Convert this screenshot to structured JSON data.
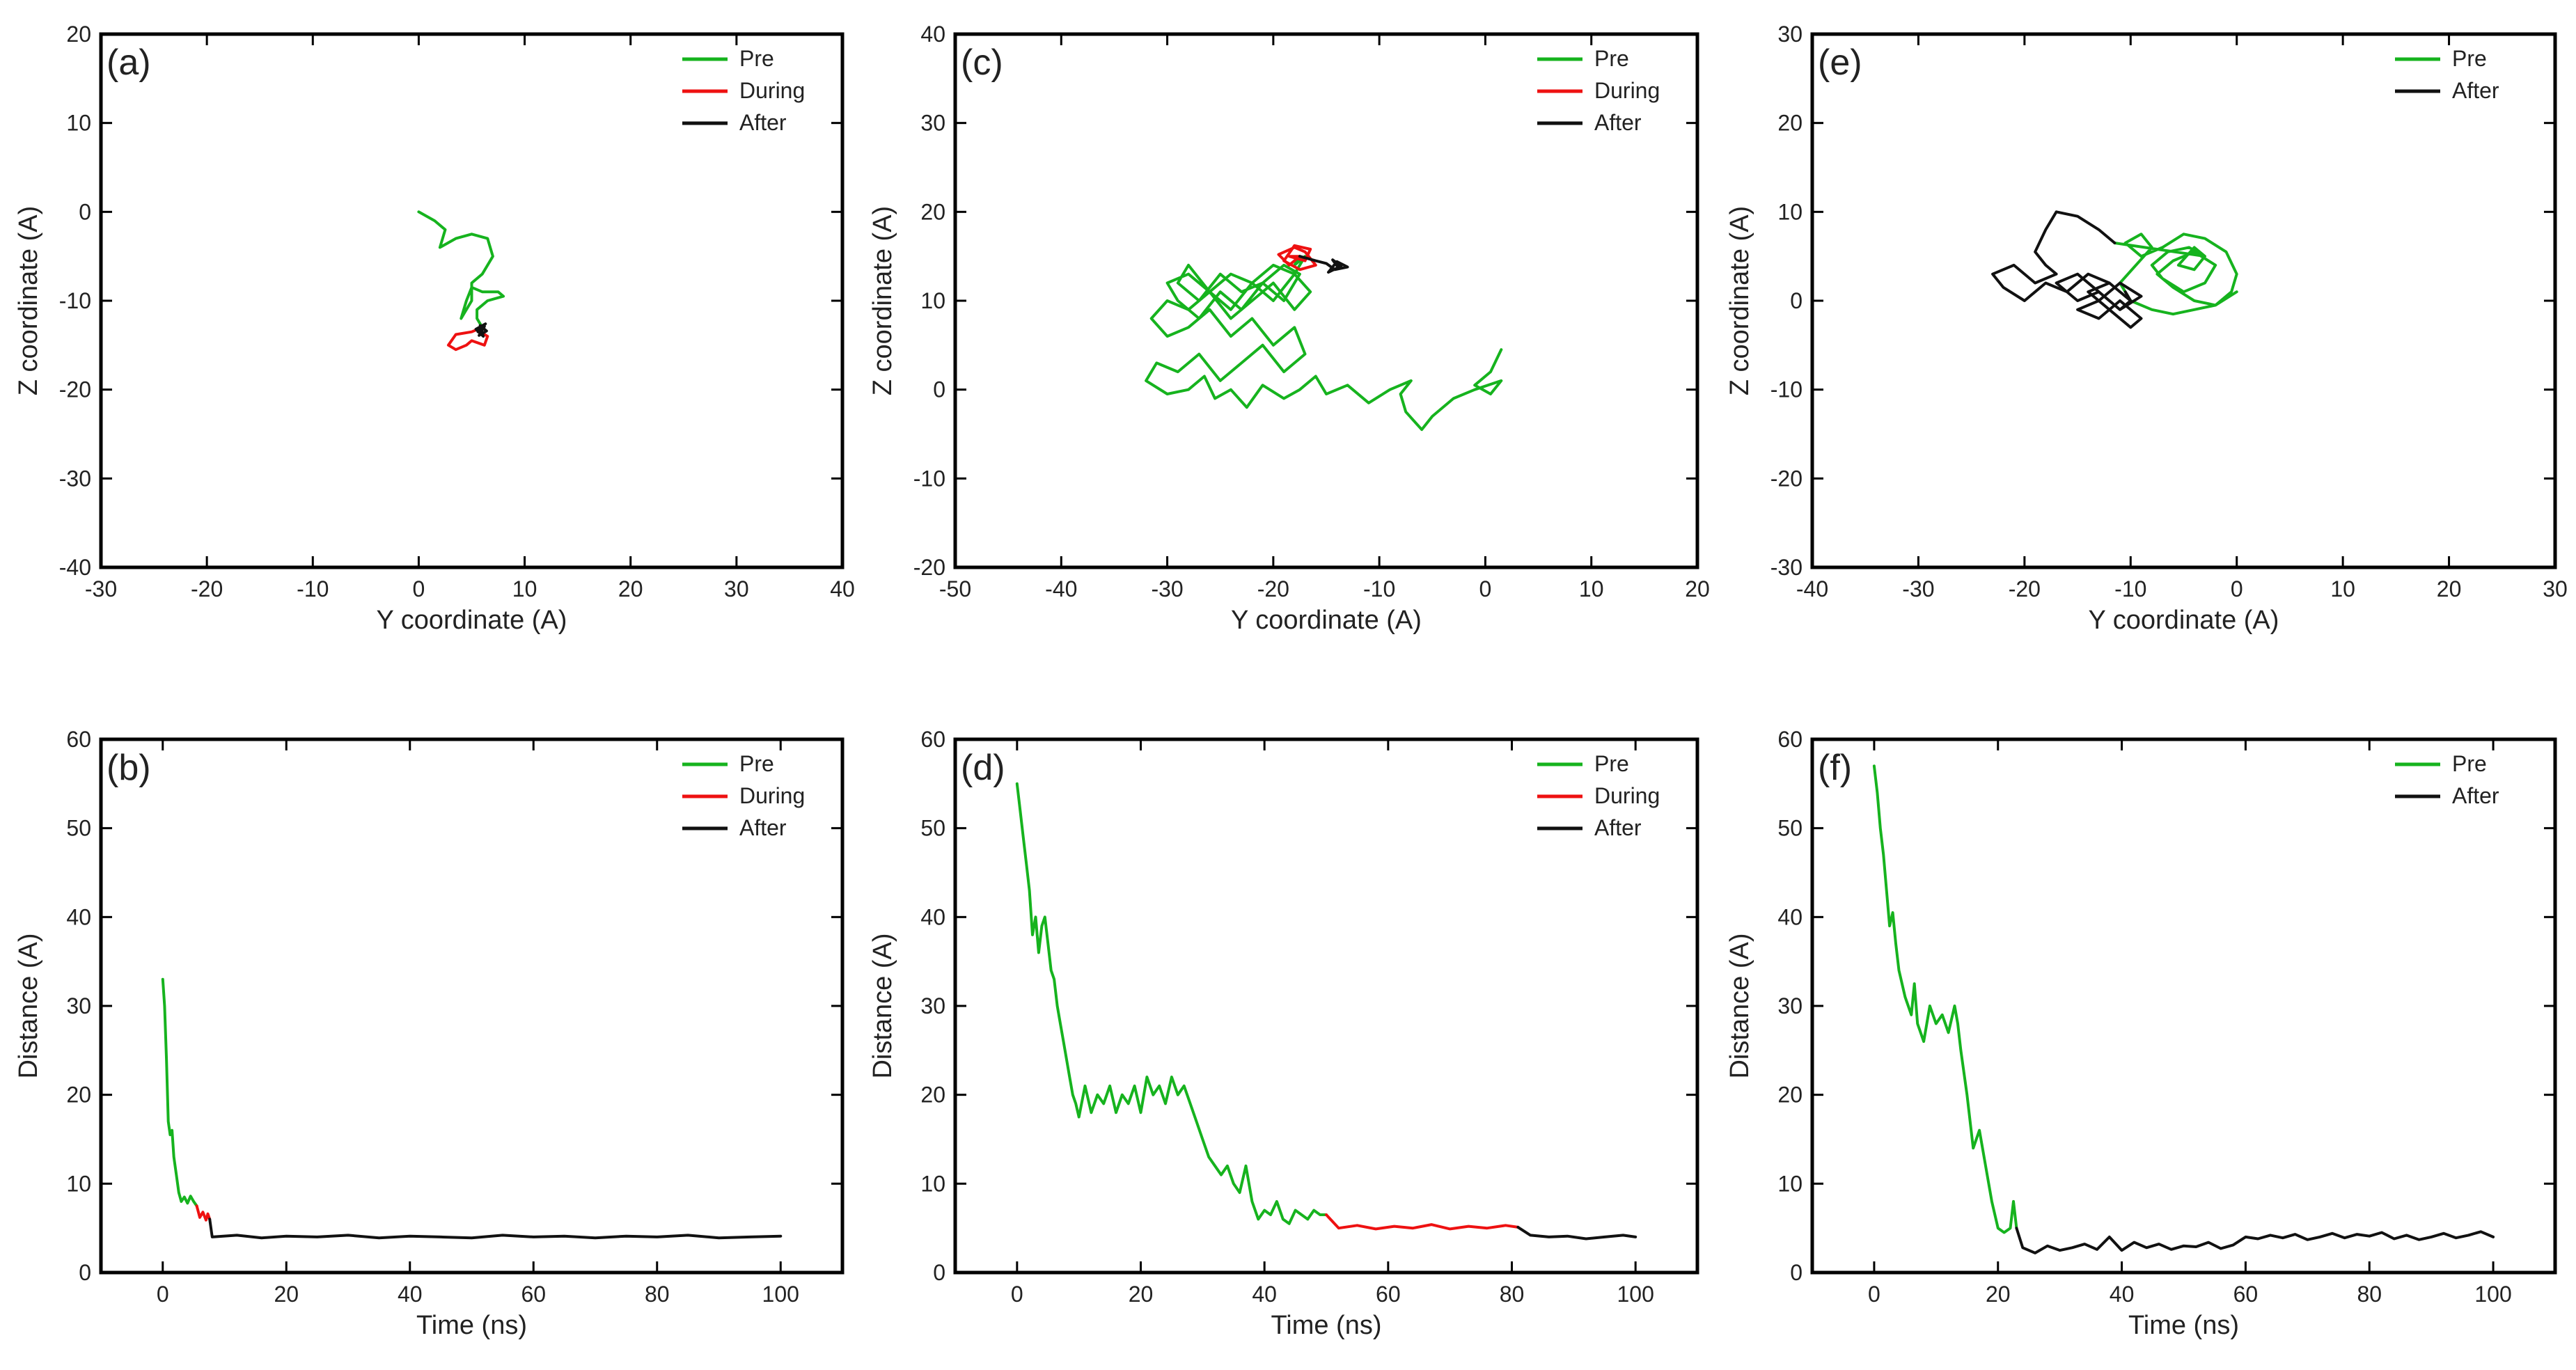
{
  "figure": {
    "colors": {
      "pre": "#16b31e",
      "during": "#ee1111",
      "after": "#111111",
      "axis": "#000000",
      "text": "#222222"
    }
  },
  "chart_data": [
    {
      "id": "a",
      "panel_label": "(a)",
      "type": "line",
      "xlabel": "Y coordinate (A)",
      "ylabel": "Z coordinate (A)",
      "xlim": [
        -30,
        40
      ],
      "ylim": [
        -40,
        20
      ],
      "xticks": [
        -30,
        -20,
        -10,
        0,
        10,
        20,
        30,
        40
      ],
      "yticks": [
        -40,
        -30,
        -20,
        -10,
        0,
        10,
        20
      ],
      "legend_position": "top-right",
      "series": [
        {
          "name": "Pre",
          "color": "#16b31e",
          "x": [
            0,
            1.5,
            2.5,
            2,
            3.5,
            5,
            6.5,
            7,
            6,
            5,
            5,
            4,
            4.5,
            5,
            6,
            7.5,
            8,
            6.5,
            5.5,
            5.5,
            6
          ],
          "y": [
            0,
            -1,
            -2,
            -4,
            -3,
            -2.5,
            -3,
            -5,
            -7,
            -8,
            -10,
            -12,
            -10,
            -8.5,
            -9,
            -9,
            -9.5,
            -10,
            -11,
            -12,
            -13
          ]
        },
        {
          "name": "During",
          "color": "#ee1111",
          "x": [
            6,
            5,
            3.5,
            2.8,
            3.5,
            4.5,
            5,
            6.2,
            6.5,
            5.8,
            6
          ],
          "y": [
            -13,
            -13.5,
            -13.8,
            -15,
            -15.5,
            -15,
            -14.5,
            -15,
            -14,
            -13.5,
            -13
          ]
        },
        {
          "name": "After",
          "color": "#111111",
          "x": [
            6,
            5.6,
            6.3,
            5.4,
            6.1,
            5.8,
            6.4,
            5.7,
            6.2,
            6
          ],
          "y": [
            -13,
            -13.5,
            -12.6,
            -13.2,
            -14,
            -12.8,
            -13.4,
            -13.9,
            -12.9,
            -13.3
          ]
        }
      ]
    },
    {
      "id": "c",
      "panel_label": "(c)",
      "type": "line",
      "xlabel": "Y coordinate (A)",
      "ylabel": "Z coordinate (A)",
      "xlim": [
        -50,
        20
      ],
      "ylim": [
        -20,
        40
      ],
      "xticks": [
        -50,
        -40,
        -30,
        -20,
        -10,
        0,
        10,
        20
      ],
      "yticks": [
        -20,
        -10,
        0,
        10,
        20,
        30,
        40
      ],
      "legend_position": "top-right",
      "series": [
        {
          "name": "Pre",
          "color": "#16b31e",
          "x": [
            1.5,
            0.5,
            -1,
            0.5,
            1.5,
            -1,
            -3,
            -5,
            -6,
            -7.5,
            -8,
            -7,
            -9,
            -11,
            -13,
            -15,
            -16,
            -17.5,
            -19,
            -21,
            -22.5,
            -24,
            -25.5,
            -26.5,
            -28,
            -30,
            -32,
            -31,
            -29,
            -27,
            -25,
            -23,
            -21,
            -19,
            -17,
            -18,
            -20,
            -22,
            -24,
            -26,
            -28,
            -30,
            -31.5,
            -30,
            -28,
            -26,
            -24,
            -22,
            -20,
            -18,
            -16.5,
            -18,
            -20,
            -22,
            -24,
            -26,
            -28,
            -30,
            -29,
            -27,
            -25,
            -23,
            -21,
            -19,
            -17.5,
            -19,
            -21,
            -23,
            -25,
            -27,
            -29,
            -28,
            -26,
            -24,
            -22,
            -20,
            -18,
            -17,
            -18,
            -17.5
          ],
          "y": [
            4.5,
            2,
            0.5,
            -0.5,
            1,
            0,
            -1,
            -3,
            -4.5,
            -2.5,
            -0.5,
            1,
            0,
            -1.5,
            0.5,
            -0.5,
            1.5,
            0,
            -1,
            0.5,
            -2,
            0,
            -1,
            1.5,
            0,
            -0.5,
            1,
            3,
            2,
            4,
            1,
            3,
            5,
            2,
            4,
            7,
            5,
            8,
            6,
            9,
            7,
            6,
            8,
            10,
            9,
            11,
            8,
            10,
            12,
            9,
            11,
            13,
            10,
            12,
            9,
            11,
            13,
            12,
            10,
            8,
            11,
            9,
            12,
            10,
            13,
            14,
            12,
            11,
            13,
            10,
            12,
            14,
            11,
            13,
            12,
            14,
            13,
            15,
            14,
            15
          ]
        },
        {
          "name": "During",
          "color": "#ee1111",
          "x": [
            -17.5,
            -18.5,
            -19.5,
            -18,
            -17,
            -16,
            -17.5,
            -19,
            -18,
            -16.5,
            -17,
            -18.5,
            -17.5
          ],
          "y": [
            15,
            14,
            15.2,
            16,
            15.5,
            14,
            13.5,
            14.5,
            16.2,
            15.8,
            14.5,
            15,
            15
          ]
        },
        {
          "name": "After",
          "color": "#111111",
          "x": [
            -17.5,
            -16,
            -15,
            -14.2,
            -13,
            -14,
            -14.8,
            -13.6,
            -14.4,
            -13.8
          ],
          "y": [
            15,
            14.5,
            14.2,
            13.5,
            13.8,
            14.4,
            13.2,
            13.9,
            14.6,
            13.6
          ]
        }
      ]
    },
    {
      "id": "e",
      "panel_label": "(e)",
      "type": "line",
      "xlabel": "Y coordinate (A)",
      "ylabel": "Z coordinate (A)",
      "xlim": [
        -40,
        30
      ],
      "ylim": [
        -30,
        30
      ],
      "xticks": [
        -40,
        -30,
        -20,
        -10,
        0,
        10,
        20,
        30
      ],
      "yticks": [
        -30,
        -20,
        -10,
        0,
        10,
        20,
        30
      ],
      "legend_position": "top-right",
      "series": [
        {
          "name": "Pre",
          "color": "#16b31e",
          "x": [
            0,
            -2,
            -4,
            -6,
            -8,
            -10,
            -11,
            -9.5,
            -8,
            -9,
            -10.5,
            -9,
            -7,
            -5,
            -3,
            -1,
            0,
            -0.5,
            -2,
            -4,
            -6,
            -7.5,
            -6,
            -4,
            -2,
            -3,
            -5,
            -7,
            -8,
            -6.5,
            -4.5,
            -3,
            -4,
            -5.5,
            -4,
            -3,
            -11.5
          ],
          "y": [
            1,
            -0.5,
            -1,
            -1.5,
            -1,
            0,
            2,
            4,
            6,
            7.5,
            6.5,
            5,
            6,
            7.5,
            7,
            5.5,
            3,
            1,
            -0.5,
            0,
            1.5,
            3,
            4.5,
            5.5,
            4,
            2,
            1,
            2.5,
            4,
            5.5,
            6,
            5,
            3.5,
            4,
            6,
            5,
            6.5
          ]
        },
        {
          "name": "After",
          "color": "#111111",
          "x": [
            -11.5,
            -13,
            -15,
            -17,
            -18,
            -19,
            -18,
            -17,
            -19,
            -21,
            -23,
            -22,
            -20,
            -18,
            -16,
            -14,
            -12,
            -10,
            -11,
            -13,
            -15,
            -17,
            -15,
            -13,
            -11,
            -9,
            -11,
            -13,
            -15,
            -13,
            -11,
            -9,
            -10,
            -12,
            -14,
            -12,
            -10,
            -10.5
          ],
          "y": [
            6.5,
            8,
            9.5,
            10,
            8,
            5.5,
            4,
            3,
            2,
            4,
            3,
            1.5,
            0,
            2,
            1,
            3,
            2,
            0,
            -1,
            1,
            0,
            2,
            3,
            1,
            -1,
            0.5,
            2,
            0,
            -1,
            -2,
            0,
            -2,
            -3,
            -1,
            1,
            2,
            0,
            1
          ]
        }
      ]
    },
    {
      "id": "b",
      "panel_label": "(b)",
      "type": "line",
      "xlabel": "Time (ns)",
      "ylabel": "Distance (A)",
      "xlim": [
        -10,
        110
      ],
      "ylim": [
        0,
        60
      ],
      "xticks": [
        0,
        20,
        40,
        60,
        80,
        100
      ],
      "yticks": [
        0,
        10,
        20,
        30,
        40,
        50,
        60
      ],
      "legend_position": "top-right",
      "series": [
        {
          "name": "Pre",
          "color": "#16b31e",
          "x": [
            0,
            0.3,
            0.6,
            0.9,
            1.2,
            1.5,
            1.8,
            2.2,
            2.6,
            3,
            3.5,
            4,
            4.5,
            5,
            5.5
          ],
          "y": [
            33,
            30,
            24,
            17,
            15.5,
            16,
            13,
            11,
            9,
            8,
            8.5,
            7.8,
            8.6,
            8,
            7.5
          ]
        },
        {
          "name": "During",
          "color": "#ee1111",
          "x": [
            5.5,
            6,
            6.5,
            7,
            7.3,
            7.6
          ],
          "y": [
            7.5,
            6.2,
            6.8,
            5.9,
            6.6,
            6
          ]
        },
        {
          "name": "After",
          "color": "#111111",
          "x": [
            7.6,
            8,
            12,
            16,
            20,
            25,
            30,
            35,
            40,
            45,
            50,
            55,
            60,
            65,
            70,
            75,
            80,
            85,
            90,
            95,
            100
          ],
          "y": [
            6,
            4,
            4.2,
            3.9,
            4.1,
            4,
            4.2,
            3.9,
            4.1,
            4,
            3.9,
            4.2,
            4,
            4.1,
            3.9,
            4.1,
            4,
            4.2,
            3.9,
            4,
            4.1
          ]
        }
      ]
    },
    {
      "id": "d",
      "panel_label": "(d)",
      "type": "line",
      "xlabel": "Time (ns)",
      "ylabel": "Distance (A)",
      "xlim": [
        -10,
        110
      ],
      "ylim": [
        0,
        60
      ],
      "xticks": [
        0,
        20,
        40,
        60,
        80,
        100
      ],
      "yticks": [
        0,
        10,
        20,
        30,
        40,
        50,
        60
      ],
      "legend_position": "top-right",
      "series": [
        {
          "name": "Pre",
          "color": "#16b31e",
          "x": [
            0,
            0.5,
            1,
            1.5,
            2,
            2.5,
            3,
            3.5,
            4,
            4.5,
            5,
            5.5,
            6,
            6.5,
            7,
            7.5,
            8,
            8.5,
            9,
            9.5,
            10,
            11,
            12,
            13,
            14,
            15,
            16,
            17,
            18,
            19,
            20,
            21,
            22,
            23,
            24,
            25,
            26,
            27,
            28,
            29,
            30,
            31,
            32,
            33,
            34,
            35,
            36,
            37,
            38,
            39,
            40,
            41,
            42,
            43,
            44,
            45,
            46,
            47,
            48,
            49,
            50
          ],
          "y": [
            55,
            52,
            49,
            46,
            43,
            38,
            40,
            36,
            39,
            40,
            37,
            34,
            33,
            30,
            28,
            26,
            24,
            22,
            20,
            19,
            17.5,
            21,
            18,
            20,
            19,
            21,
            18,
            20,
            19,
            21,
            18,
            22,
            20,
            21,
            19,
            22,
            20,
            21,
            19,
            17,
            15,
            13,
            12,
            11,
            12,
            10,
            9,
            12,
            8,
            6,
            7,
            6.5,
            8,
            6,
            5.5,
            7,
            6.5,
            6,
            7,
            6.5,
            6.5
          ]
        },
        {
          "name": "During",
          "color": "#ee1111",
          "x": [
            50,
            52,
            55,
            58,
            61,
            64,
            67,
            70,
            73,
            76,
            79,
            81
          ],
          "y": [
            6.5,
            5,
            5.3,
            4.9,
            5.2,
            5,
            5.4,
            4.9,
            5.2,
            5,
            5.3,
            5.1
          ]
        },
        {
          "name": "After",
          "color": "#111111",
          "x": [
            81,
            83,
            86,
            89,
            92,
            95,
            98,
            100
          ],
          "y": [
            5.1,
            4.2,
            4,
            4.1,
            3.8,
            4,
            4.2,
            4
          ]
        }
      ]
    },
    {
      "id": "f",
      "panel_label": "(f)",
      "type": "line",
      "xlabel": "Time (ns)",
      "ylabel": "Distance (A)",
      "xlim": [
        -10,
        110
      ],
      "ylim": [
        0,
        60
      ],
      "xticks": [
        0,
        20,
        40,
        60,
        80,
        100
      ],
      "yticks": [
        0,
        10,
        20,
        30,
        40,
        50,
        60
      ],
      "legend_position": "top-right",
      "series": [
        {
          "name": "Pre",
          "color": "#16b31e",
          "x": [
            0,
            0.5,
            1,
            1.5,
            2,
            2.5,
            3,
            3.5,
            4,
            5,
            6,
            6.5,
            7,
            8,
            9,
            10,
            11,
            12,
            13,
            13.5,
            14,
            15,
            16,
            17,
            18,
            19,
            20,
            21,
            22,
            22.5,
            23
          ],
          "y": [
            57,
            54,
            50,
            47,
            43,
            39,
            40.5,
            37,
            34,
            31,
            29,
            32.5,
            28,
            26,
            30,
            28,
            29,
            27,
            30,
            28,
            25,
            20,
            14,
            16,
            12,
            8,
            5,
            4.5,
            5,
            8,
            5
          ]
        },
        {
          "name": "After",
          "color": "#111111",
          "x": [
            23,
            24,
            26,
            28,
            30,
            32,
            34,
            36,
            38,
            40,
            42,
            44,
            46,
            48,
            50,
            52,
            54,
            56,
            58,
            60,
            62,
            64,
            66,
            68,
            70,
            72,
            74,
            76,
            78,
            80,
            82,
            84,
            86,
            88,
            90,
            92,
            94,
            96,
            98,
            100
          ],
          "y": [
            5,
            2.8,
            2.2,
            3,
            2.5,
            2.8,
            3.2,
            2.6,
            4,
            2.5,
            3.4,
            2.8,
            3.2,
            2.6,
            3,
            2.9,
            3.4,
            2.7,
            3.1,
            4,
            3.8,
            4.2,
            3.9,
            4.3,
            3.7,
            4,
            4.4,
            3.9,
            4.3,
            4.1,
            4.5,
            3.8,
            4.2,
            3.7,
            4,
            4.4,
            3.9,
            4.2,
            4.6,
            4
          ]
        }
      ]
    }
  ]
}
